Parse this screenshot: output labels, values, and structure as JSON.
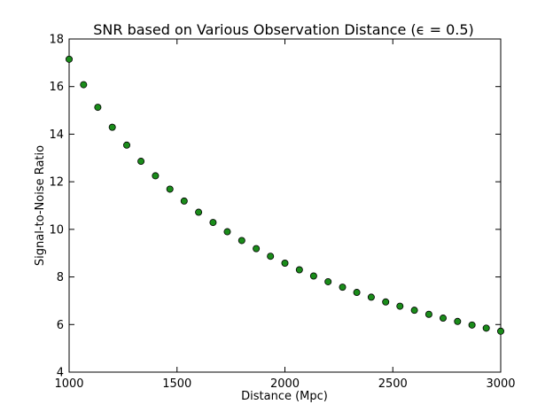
{
  "chart_data": {
    "type": "scatter",
    "title": "SNR based on Various Observation Distance (ϵ = 0.5)",
    "xlabel": "Distance (Mpc)",
    "ylabel": "Signal-to-Noise Ratio",
    "xlim": [
      1000,
      3000
    ],
    "ylim": [
      4,
      18
    ],
    "xticks": [
      1000,
      1500,
      2000,
      2500,
      3000
    ],
    "yticks": [
      4,
      6,
      8,
      10,
      12,
      14,
      16,
      18
    ],
    "grid": false,
    "marker_color": "#1a8c1a",
    "marker_edge_color": "#000000",
    "x": [
      1000,
      1067,
      1133,
      1200,
      1267,
      1333,
      1400,
      1467,
      1533,
      1600,
      1667,
      1733,
      1800,
      1867,
      1933,
      2000,
      2067,
      2133,
      2200,
      2267,
      2333,
      2400,
      2467,
      2533,
      2600,
      2667,
      2733,
      2800,
      2867,
      2933,
      3000
    ],
    "y": [
      17.15,
      16.08,
      15.13,
      14.29,
      13.54,
      12.86,
      12.25,
      11.69,
      11.19,
      10.72,
      10.29,
      9.9,
      9.53,
      9.19,
      8.87,
      8.58,
      8.3,
      8.04,
      7.8,
      7.57,
      7.35,
      7.15,
      6.95,
      6.77,
      6.6,
      6.43,
      6.27,
      6.13,
      5.98,
      5.85,
      5.72
    ]
  }
}
